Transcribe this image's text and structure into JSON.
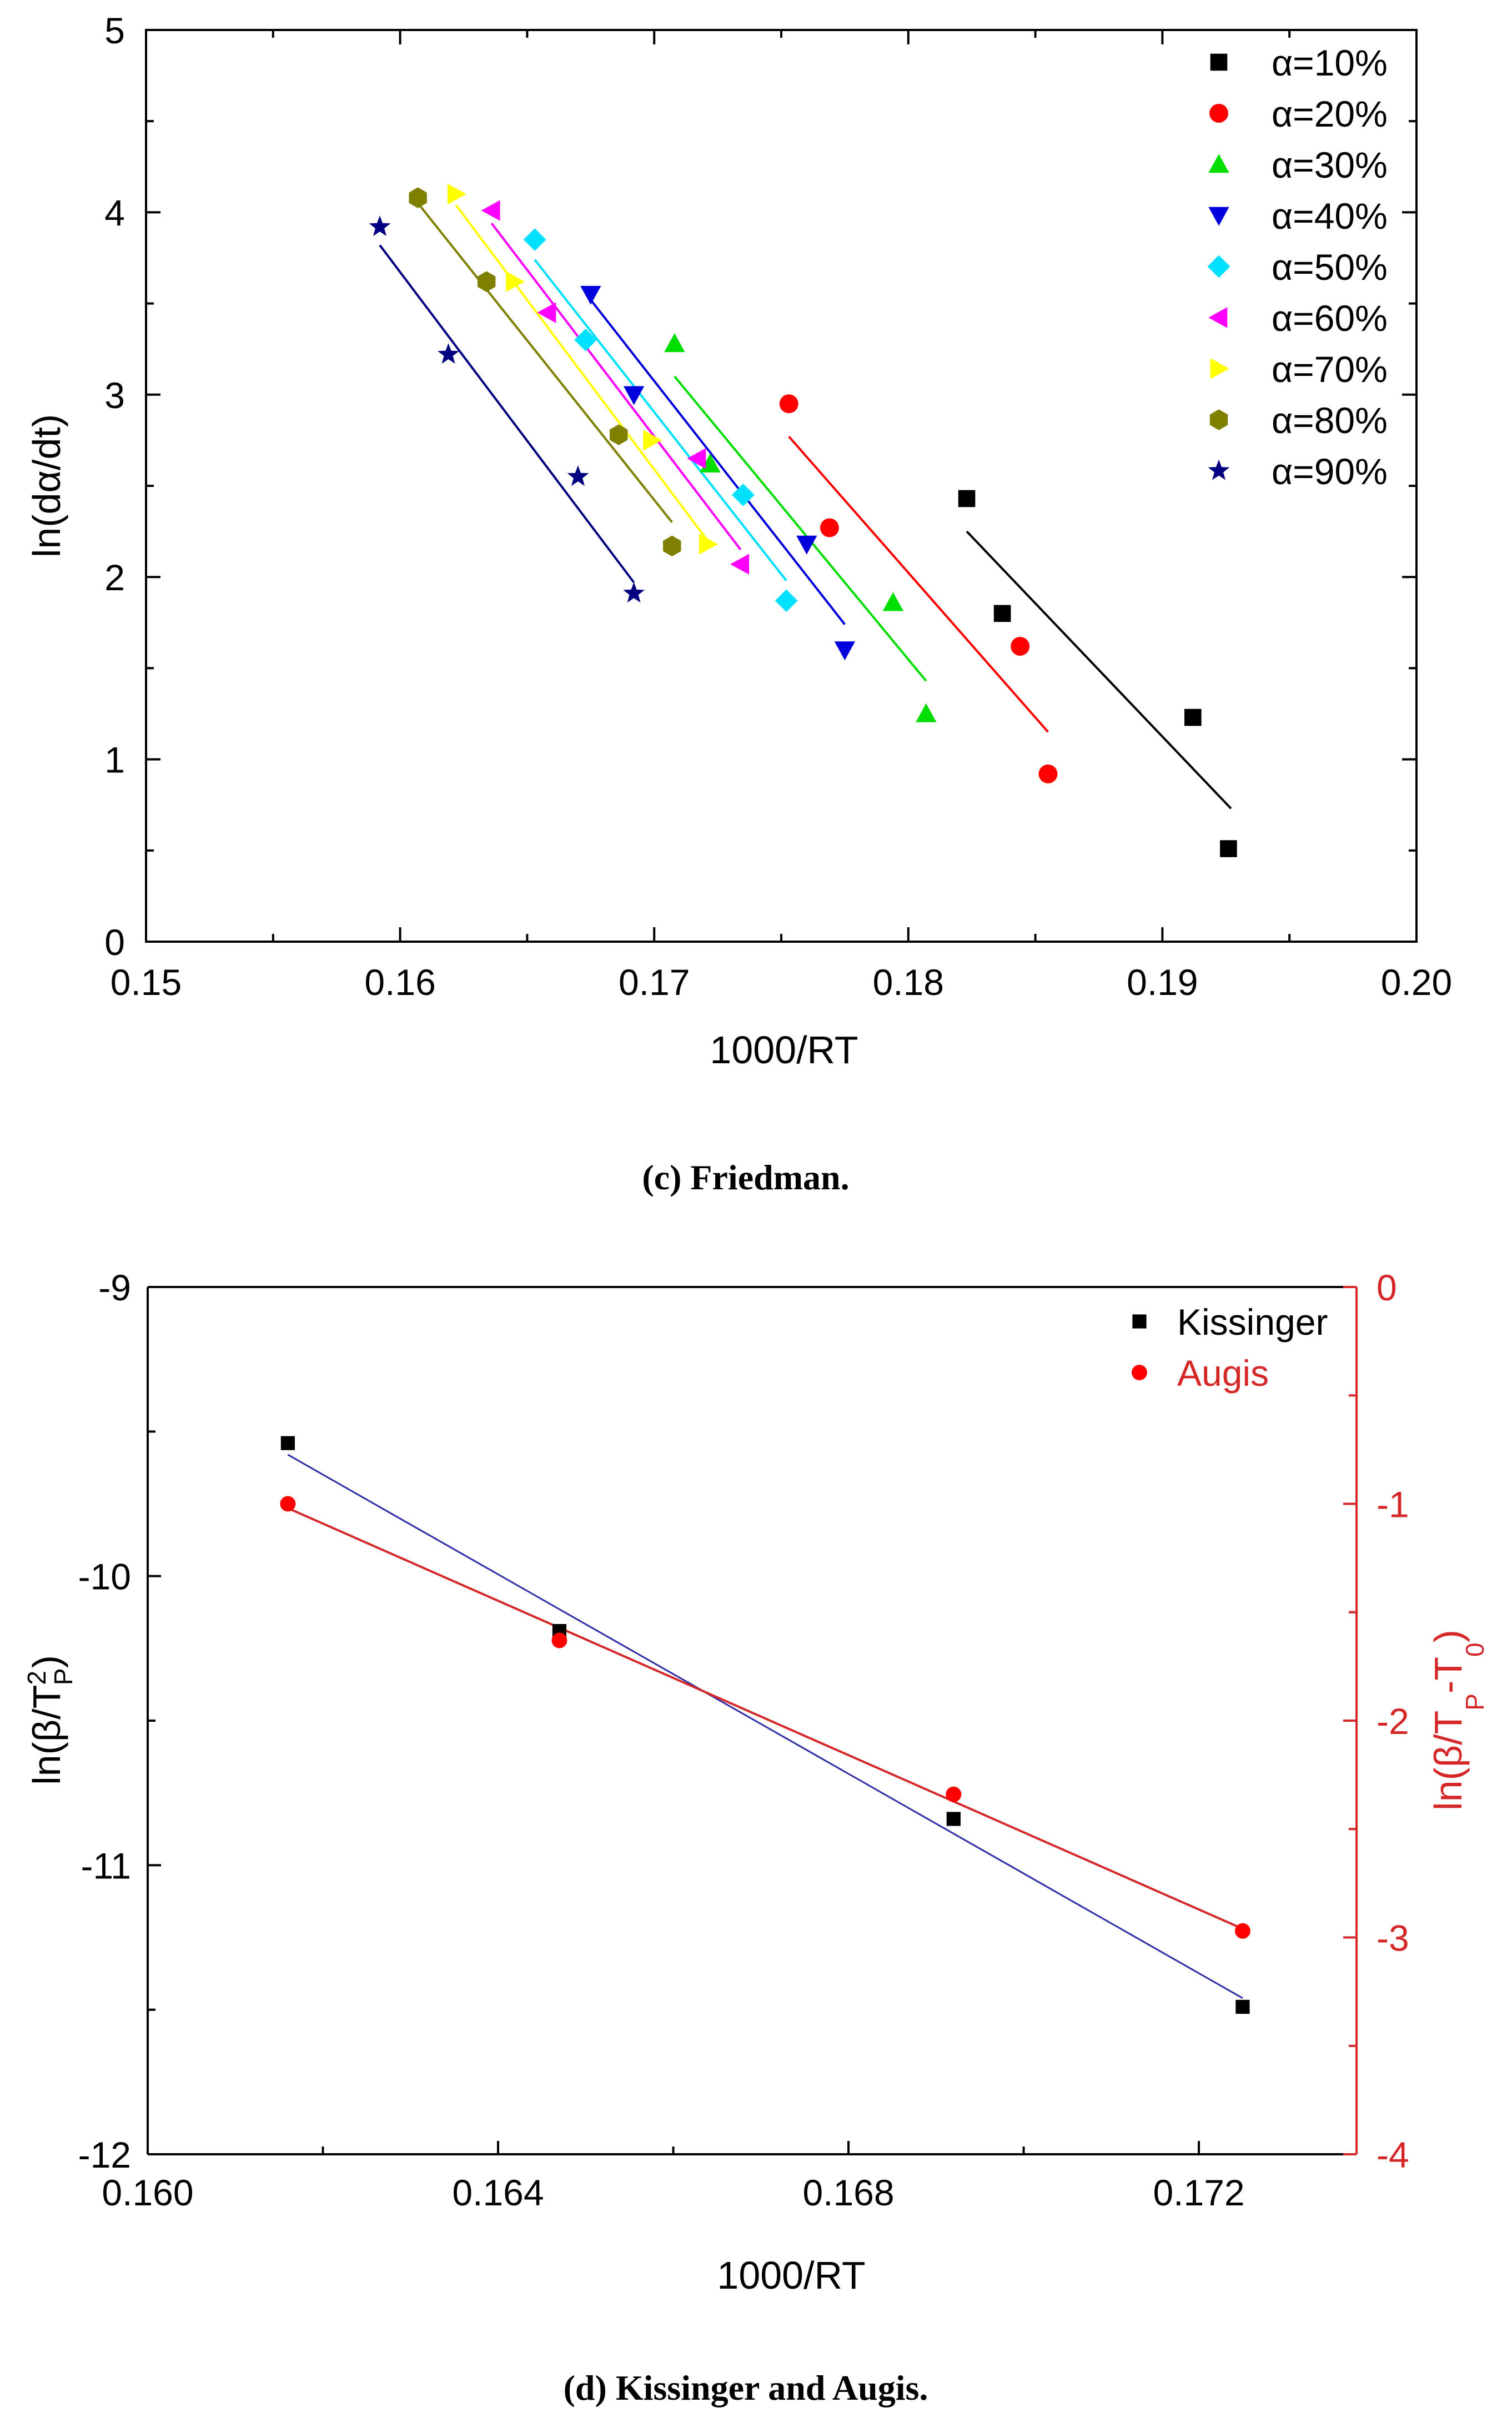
{
  "chart_data": [
    {
      "type": "scatter",
      "title": "",
      "caption": "(c) Friedman.",
      "xlabel": "1000/RT",
      "ylabel": "ln(dα/dt)",
      "xlim": [
        0.15,
        0.2
      ],
      "ylim": [
        0,
        5
      ],
      "xticks": [
        "0.15",
        "0.16",
        "0.17",
        "0.18",
        "0.19",
        "0.20"
      ],
      "yticks": [
        "0",
        "1",
        "2",
        "3",
        "4",
        "5"
      ],
      "series": [
        {
          "name": "α=10%",
          "color": "#000000",
          "marker": "square",
          "x": [
            0.1823,
            0.1837,
            0.1912,
            0.1926
          ],
          "y": [
            2.43,
            1.8,
            1.23,
            0.51
          ],
          "fit": [
            [
              0.1823,
              2.25
            ],
            [
              0.1927,
              0.73
            ]
          ]
        },
        {
          "name": "α=20%",
          "color": "#ff0000",
          "marker": "circle",
          "x": [
            0.1753,
            0.1769,
            0.1844,
            0.1855
          ],
          "y": [
            2.95,
            2.27,
            1.62,
            0.92
          ],
          "fit": [
            [
              0.1753,
              2.77
            ],
            [
              0.1855,
              1.15
            ]
          ]
        },
        {
          "name": "α=30%",
          "color": "#00dd00",
          "marker": "triangle-up",
          "x": [
            0.1708,
            0.1722,
            0.1794,
            0.1807
          ],
          "y": [
            3.28,
            2.62,
            1.86,
            1.25
          ],
          "fit": [
            [
              0.1708,
              3.1
            ],
            [
              0.1807,
              1.43
            ]
          ]
        },
        {
          "name": "α=40%",
          "color": "#0000dd",
          "marker": "triangle-down",
          "x": [
            0.1675,
            0.1692,
            0.176,
            0.1775
          ],
          "y": [
            3.55,
            3.0,
            2.18,
            1.6
          ],
          "fit": [
            [
              0.1675,
              3.52
            ],
            [
              0.1775,
              1.74
            ]
          ]
        },
        {
          "name": "α=50%",
          "color": "#00e0ff",
          "marker": "diamond",
          "x": [
            0.1653,
            0.1673,
            0.1735,
            0.1752
          ],
          "y": [
            3.85,
            3.3,
            2.45,
            1.87
          ],
          "fit": [
            [
              0.1653,
              3.74
            ],
            [
              0.1752,
              1.98
            ]
          ]
        },
        {
          "name": "α=60%",
          "color": "#ff00ff",
          "marker": "triangle-left",
          "x": [
            0.1636,
            0.1658,
            0.1717,
            0.1734
          ],
          "y": [
            4.01,
            3.45,
            2.65,
            2.07
          ],
          "fit": [
            [
              0.1636,
              3.94
            ],
            [
              0.1734,
              2.15
            ]
          ]
        },
        {
          "name": "α=70%",
          "color": "#ffff00",
          "marker": "triangle-right",
          "x": [
            0.1622,
            0.1645,
            0.1699,
            0.1721
          ],
          "y": [
            4.1,
            3.62,
            2.75,
            2.18
          ],
          "fit": [
            [
              0.1622,
              4.04
            ],
            [
              0.1721,
              2.2
            ]
          ]
        },
        {
          "name": "α=80%",
          "color": "#808000",
          "marker": "hexagon",
          "x": [
            0.1607,
            0.1634,
            0.1686,
            0.1707
          ],
          "y": [
            4.08,
            3.62,
            2.78,
            2.17
          ],
          "fit": [
            [
              0.1607,
              4.05
            ],
            [
              0.1707,
              2.3
            ]
          ]
        },
        {
          "name": "α=90%",
          "color": "#000080",
          "marker": "star",
          "x": [
            0.1592,
            0.1619,
            0.167,
            0.1692
          ],
          "y": [
            3.92,
            3.22,
            2.55,
            1.91
          ],
          "fit": [
            [
              0.1592,
              3.82
            ],
            [
              0.1692,
              1.97
            ]
          ]
        }
      ]
    },
    {
      "type": "scatter",
      "title": "",
      "caption": "(d) Kissinger and Augis.",
      "xlabel": "1000/RT",
      "ylabel_left": "ln(β/T_P^2)",
      "ylabel_left_parts": {
        "main": "ln(β/T",
        "sup": "2",
        "sub": "P",
        "close": ")"
      },
      "ylabel_right": "ln(β/T_P - T_0)",
      "ylabel_right_parts": {
        "main": "ln(β/T",
        "sub1": "P",
        "mid": "-T",
        "sub2": "0",
        "close": ")"
      },
      "xlim": [
        0.16,
        0.1738
      ],
      "ylim_left": [
        -12,
        -9
      ],
      "ylim_right": [
        -4,
        0
      ],
      "xticks": [
        "0.160",
        "0.164",
        "0.168",
        "0.172"
      ],
      "yticks_left": [
        "-12",
        "-11",
        "-10",
        "-9"
      ],
      "yticks_right": [
        "-4",
        "-3",
        "-2",
        "-1",
        "0"
      ],
      "series": [
        {
          "name": "Kissinger",
          "color": "#000000",
          "fit_color": "#2f2fa8",
          "axis": "left",
          "marker": "square",
          "x": [
            0.1616,
            0.1647,
            0.1692,
            0.1725
          ],
          "y": [
            -9.54,
            -10.19,
            -10.84,
            -11.49
          ],
          "fit": [
            [
              0.1616,
              -9.58
            ],
            [
              0.1725,
              -11.46
            ]
          ]
        },
        {
          "name": "Augis",
          "color": "#ff0000",
          "fit_color": "#d62728",
          "axis": "right",
          "marker": "circle",
          "x": [
            0.1616,
            0.1647,
            0.1692,
            0.1725
          ],
          "y": [
            -1.0,
            -1.63,
            -2.34,
            -2.97
          ],
          "fit": [
            [
              0.1616,
              -1.02
            ],
            [
              0.1725,
              -2.96
            ]
          ]
        }
      ]
    }
  ]
}
